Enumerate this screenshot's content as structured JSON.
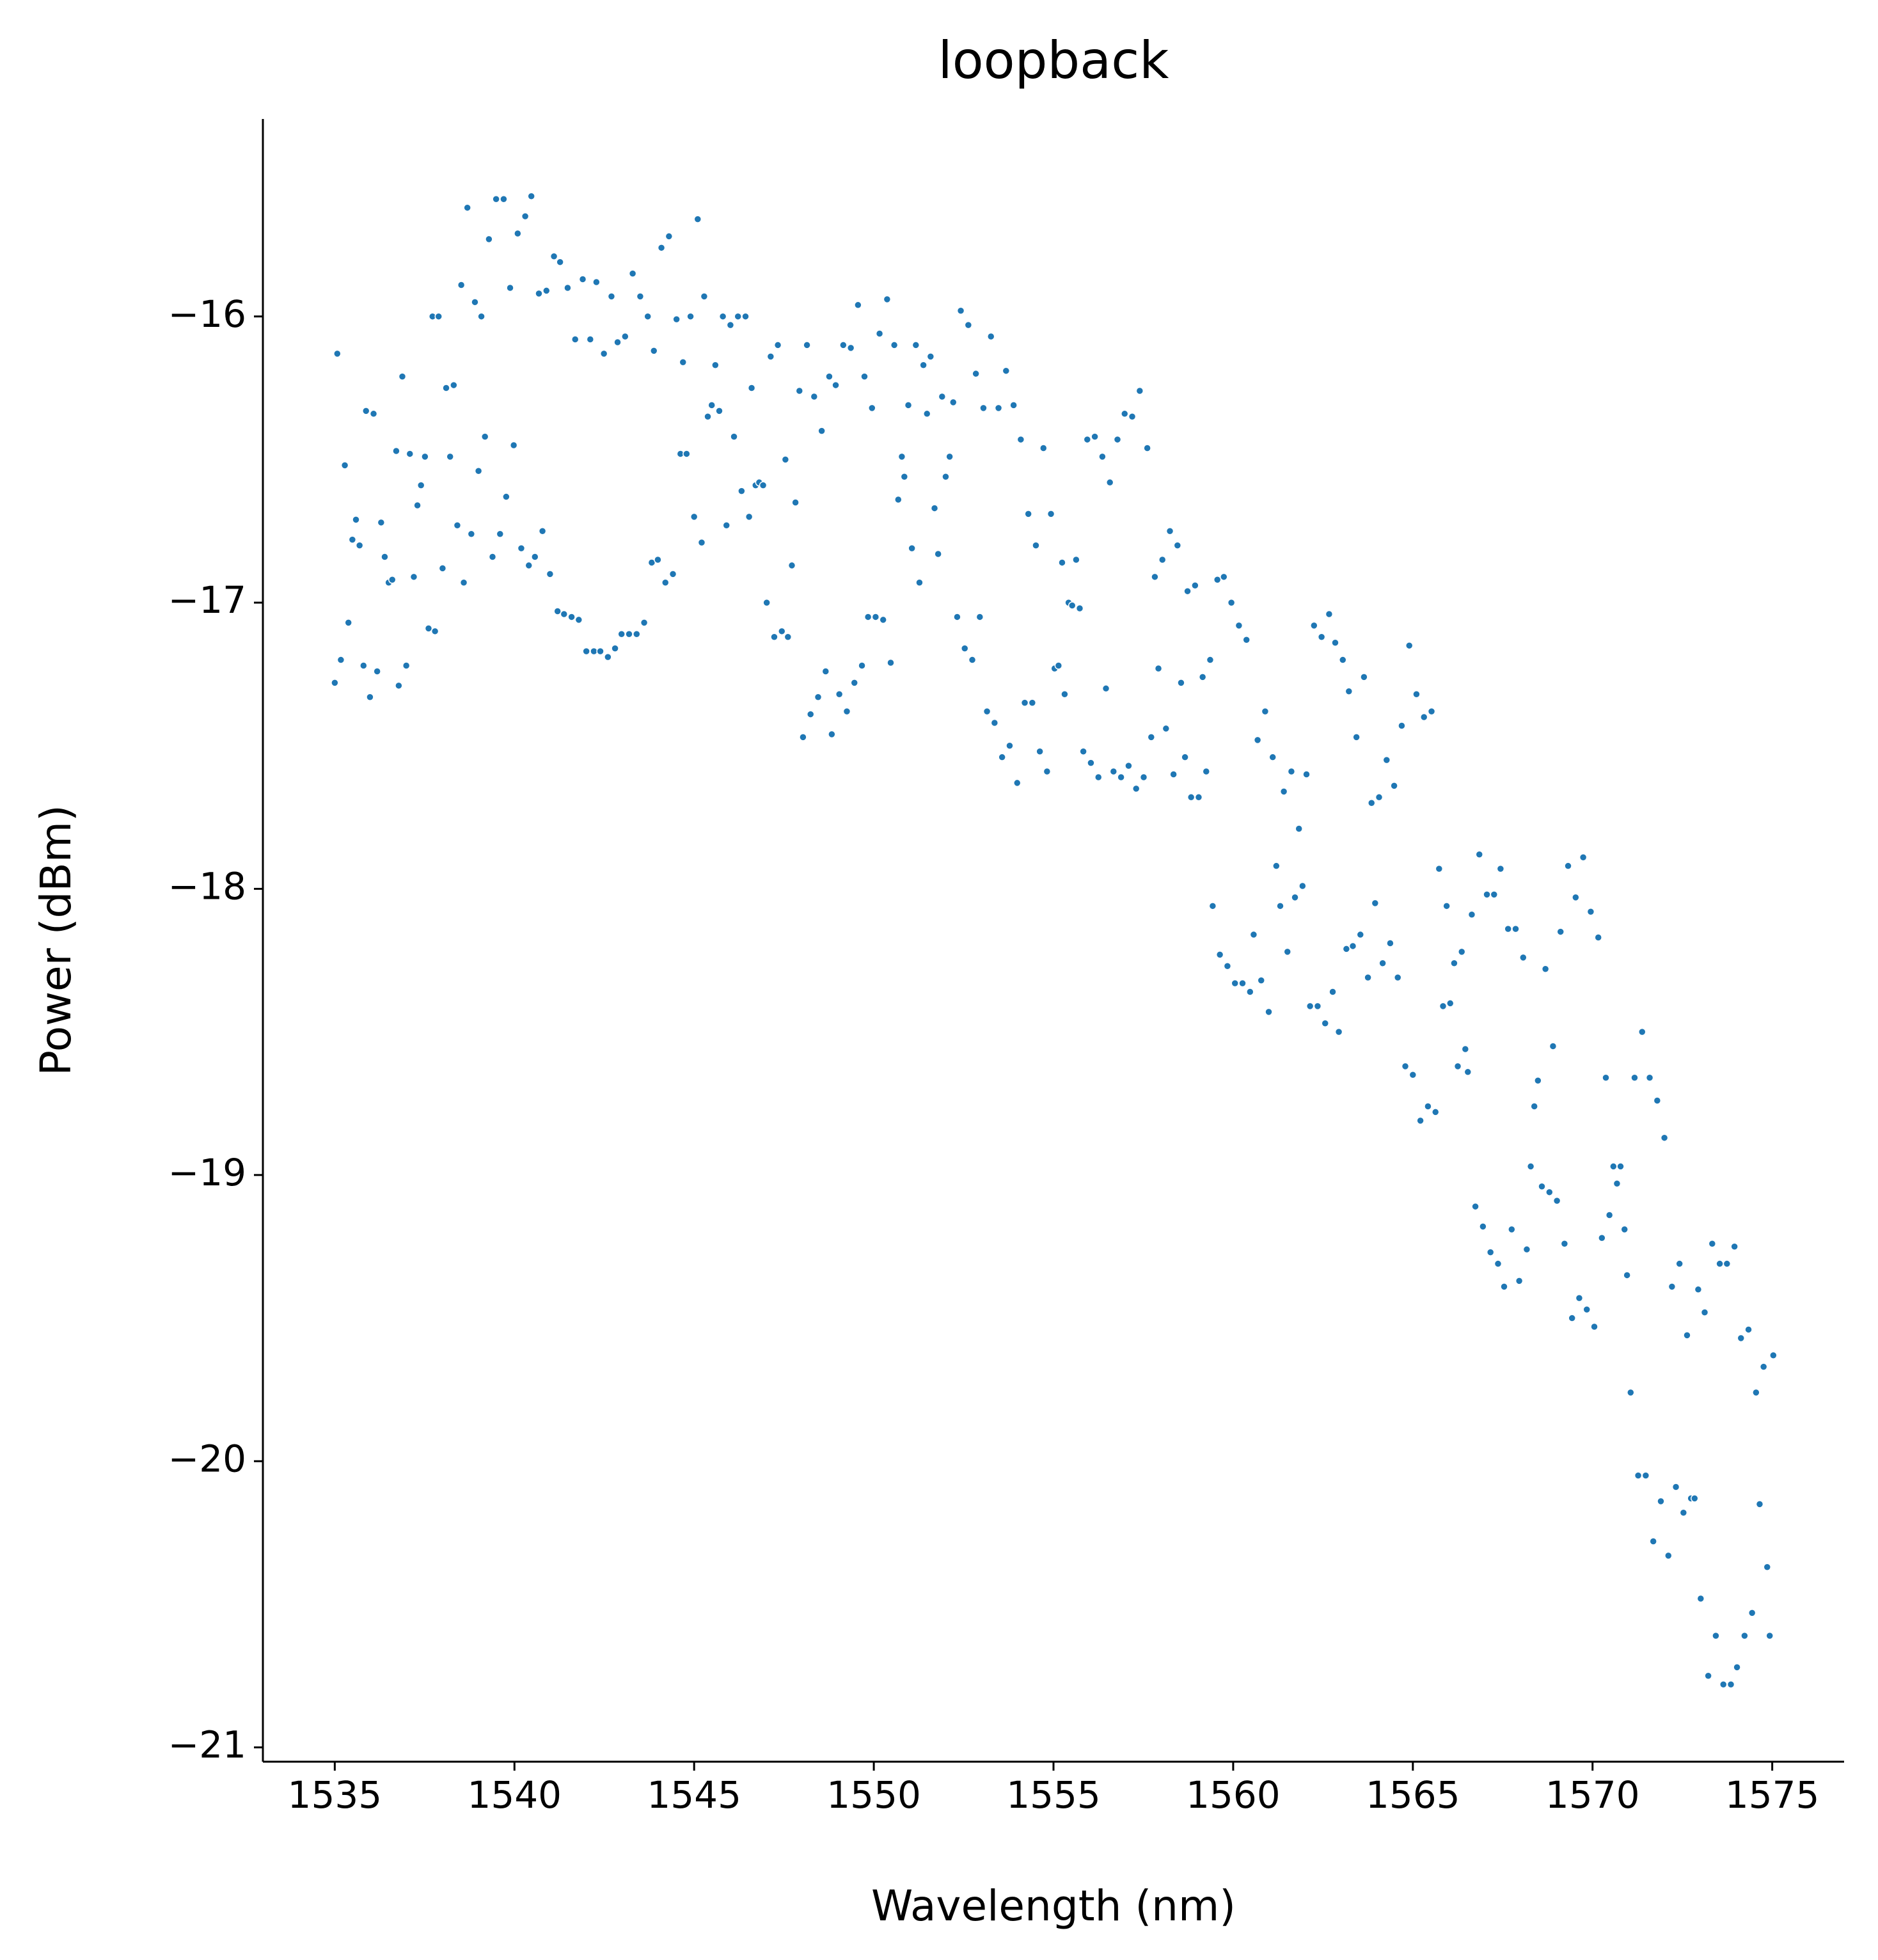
{
  "chart_data": {
    "type": "scatter",
    "title": "loopback",
    "xlabel": "Wavelength (nm)",
    "ylabel": "Power (dBm)",
    "color": "#1f77b4",
    "xlim": [
      1533,
      1577
    ],
    "ylim": [
      -21.05,
      -15.31
    ],
    "xticks": [
      1535,
      1540,
      1545,
      1550,
      1555,
      1560,
      1565,
      1570,
      1575
    ],
    "yticks": [
      {
        "value": -21,
        "label": "−21"
      },
      {
        "value": -20,
        "label": "−20"
      },
      {
        "value": -19,
        "label": "−19"
      },
      {
        "value": -18,
        "label": "−18"
      },
      {
        "value": -17,
        "label": "−17"
      },
      {
        "value": -16,
        "label": "−16"
      }
    ],
    "x": [
      1535.0,
      1535.07,
      1535.17,
      1535.28,
      1535.38,
      1535.49,
      1535.59,
      1535.69,
      1535.8,
      1535.87,
      1535.98,
      1536.08,
      1536.18,
      1536.29,
      1536.39,
      1536.5,
      1536.6,
      1536.71,
      1536.78,
      1536.88,
      1536.99,
      1537.09,
      1537.2,
      1537.3,
      1537.4,
      1537.51,
      1537.61,
      1537.72,
      1537.79,
      1537.89,
      1538.0,
      1538.1,
      1538.21,
      1538.31,
      1538.41,
      1538.52,
      1538.59,
      1538.69,
      1538.8,
      1538.9,
      1539.0,
      1539.08,
      1539.18,
      1539.29,
      1539.39,
      1539.49,
      1539.6,
      1539.7,
      1539.77,
      1539.88,
      1539.98,
      1540.09,
      1540.19,
      1540.3,
      1540.4,
      1540.47,
      1540.57,
      1540.68,
      1540.78,
      1540.89,
      1540.99,
      1541.1,
      1541.2,
      1541.27,
      1541.38,
      1541.48,
      1541.59,
      1541.69,
      1541.79,
      1541.9,
      1542.0,
      1542.11,
      1542.21,
      1542.28,
      1542.39,
      1542.49,
      1542.6,
      1542.7,
      1542.8,
      1542.87,
      1542.98,
      1543.08,
      1543.19,
      1543.29,
      1543.4,
      1543.5,
      1543.61,
      1543.71,
      1543.82,
      1543.88,
      1543.99,
      1544.09,
      1544.2,
      1544.3,
      1544.41,
      1544.51,
      1544.62,
      1544.69,
      1544.79,
      1544.9,
      1545.0,
      1545.1,
      1545.21,
      1545.28,
      1545.38,
      1545.49,
      1545.59,
      1545.7,
      1545.8,
      1545.9,
      1546.01,
      1546.11,
      1546.22,
      1546.32,
      1546.43,
      1546.53,
      1546.6,
      1546.71,
      1546.81,
      1546.92,
      1547.02,
      1547.13,
      1547.23,
      1547.33,
      1547.44,
      1547.54,
      1547.61,
      1547.72,
      1547.82,
      1547.93,
      1548.03,
      1548.14,
      1548.24,
      1548.34,
      1548.45,
      1548.55,
      1548.66,
      1548.76,
      1548.83,
      1548.94,
      1549.04,
      1549.15,
      1549.25,
      1549.36,
      1549.46,
      1549.56,
      1549.67,
      1549.74,
      1549.84,
      1549.95,
      1550.05,
      1550.16,
      1550.26,
      1550.37,
      1550.47,
      1550.57,
      1550.68,
      1550.78,
      1550.85,
      1550.96,
      1551.06,
      1551.17,
      1551.27,
      1551.38,
      1551.48,
      1551.58,
      1551.69,
      1551.79,
      1551.9,
      1552.0,
      1552.11,
      1552.21,
      1552.32,
      1552.42,
      1552.53,
      1552.63,
      1552.74,
      1552.84,
      1552.95,
      1553.05,
      1553.15,
      1553.26,
      1553.36,
      1553.47,
      1553.57,
      1553.68,
      1553.78,
      1553.89,
      1553.99,
      1554.09,
      1554.2,
      1554.3,
      1554.41,
      1554.51,
      1554.62,
      1554.72,
      1554.82,
      1554.93,
      1555.03,
      1555.14,
      1555.24,
      1555.31,
      1555.42,
      1555.52,
      1555.63,
      1555.73,
      1555.83,
      1555.94,
      1556.04,
      1556.15,
      1556.25,
      1556.36,
      1556.46,
      1556.57,
      1556.67,
      1556.78,
      1556.88,
      1556.98,
      1557.09,
      1557.19,
      1557.3,
      1557.4,
      1557.51,
      1557.61,
      1557.72,
      1557.82,
      1557.92,
      1558.03,
      1558.13,
      1558.24,
      1558.34,
      1558.45,
      1558.55,
      1558.66,
      1558.73,
      1558.83,
      1558.94,
      1559.04,
      1559.15,
      1559.25,
      1559.36,
      1559.43,
      1559.56,
      1559.63,
      1559.74,
      1559.84,
      1559.95,
      1560.05,
      1560.16,
      1560.26,
      1560.37,
      1560.47,
      1560.57,
      1560.68,
      1560.78,
      1560.89,
      1560.99,
      1561.1,
      1561.2,
      1561.31,
      1561.41,
      1561.51,
      1561.62,
      1561.72,
      1561.83,
      1561.93,
      1562.04,
      1562.14,
      1562.25,
      1562.35,
      1562.46,
      1562.56,
      1562.67,
      1562.77,
      1562.84,
      1562.94,
      1563.05,
      1563.15,
      1563.22,
      1563.33,
      1563.43,
      1563.54,
      1563.64,
      1563.75,
      1563.85,
      1563.95,
      1564.06,
      1564.16,
      1564.27,
      1564.37,
      1564.48,
      1564.58,
      1564.69,
      1564.79,
      1564.9,
      1565.0,
      1565.1,
      1565.21,
      1565.31,
      1565.42,
      1565.52,
      1565.63,
      1565.73,
      1565.84,
      1565.94,
      1566.04,
      1566.15,
      1566.25,
      1566.36,
      1566.46,
      1566.53,
      1566.64,
      1566.74,
      1566.85,
      1566.95,
      1567.06,
      1567.16,
      1567.26,
      1567.37,
      1567.44,
      1567.54,
      1567.65,
      1567.75,
      1567.86,
      1567.96,
      1568.07,
      1568.17,
      1568.28,
      1568.38,
      1568.48,
      1568.59,
      1568.69,
      1568.8,
      1568.9,
      1569.01,
      1569.11,
      1569.22,
      1569.32,
      1569.43,
      1569.53,
      1569.63,
      1569.74,
      1569.84,
      1569.95,
      1570.05,
      1570.16,
      1570.26,
      1570.37,
      1570.47,
      1570.58,
      1570.68,
      1570.78,
      1570.89,
      1570.96,
      1571.06,
      1571.17,
      1571.27,
      1571.38,
      1571.48,
      1571.59,
      1571.69,
      1571.8,
      1571.9,
      1572.0,
      1572.11,
      1572.21,
      1572.32,
      1572.42,
      1572.53,
      1572.63,
      1572.74,
      1572.84,
      1572.94,
      1573.01,
      1573.12,
      1573.22,
      1573.33,
      1573.43,
      1573.54,
      1573.64,
      1573.74,
      1573.85,
      1573.95,
      1574.02,
      1574.13,
      1574.23,
      1574.34,
      1574.44,
      1574.55,
      1574.65,
      1574.76,
      1574.86,
      1574.93,
      1575.03
    ],
    "values": [
      -17.28,
      -16.13,
      -17.2,
      -16.52,
      -17.07,
      -16.78,
      -16.71,
      -16.8,
      -17.22,
      -16.33,
      -17.33,
      -16.34,
      -17.24,
      -16.72,
      -16.84,
      -16.93,
      -16.92,
      -16.47,
      -17.29,
      -16.21,
      -17.22,
      -16.48,
      -16.91,
      -16.66,
      -16.59,
      -16.49,
      -17.09,
      -16.0,
      -17.1,
      -16.0,
      -16.88,
      -16.25,
      -16.49,
      -16.24,
      -16.73,
      -15.89,
      -16.93,
      -15.62,
      -16.76,
      -15.95,
      -16.54,
      -16.0,
      -16.42,
      -15.73,
      -16.84,
      -15.59,
      -16.76,
      -15.59,
      -16.63,
      -15.9,
      -16.45,
      -15.71,
      -16.81,
      -15.65,
      -16.87,
      -15.58,
      -16.84,
      -15.92,
      -16.75,
      -15.91,
      -16.9,
      -15.79,
      -17.03,
      -15.81,
      -17.04,
      -15.9,
      -17.05,
      -16.08,
      -17.06,
      -15.87,
      -17.17,
      -16.08,
      -17.17,
      -15.88,
      -17.17,
      -16.13,
      -17.19,
      -15.93,
      -17.16,
      -16.09,
      -17.11,
      -16.07,
      -17.11,
      -15.85,
      -17.11,
      -15.93,
      -17.07,
      -16.0,
      -16.86,
      -16.12,
      -16.85,
      -15.76,
      -16.93,
      -15.72,
      -16.9,
      -16.01,
      -16.48,
      -16.16,
      -16.48,
      -16.0,
      -16.7,
      -15.66,
      -16.79,
      -15.93,
      -16.35,
      -16.31,
      -16.17,
      -16.33,
      -16.0,
      -16.73,
      -16.03,
      -16.42,
      -16.0,
      -16.61,
      -16.0,
      -16.7,
      -16.25,
      -16.59,
      -16.58,
      -16.59,
      -17.0,
      -16.14,
      -17.12,
      -16.1,
      -17.1,
      -16.5,
      -17.12,
      -16.87,
      -16.65,
      -16.26,
      -17.47,
      -16.1,
      -17.39,
      -16.28,
      -17.33,
      -16.4,
      -17.24,
      -16.21,
      -17.46,
      -16.24,
      -17.32,
      -16.1,
      -17.38,
      -16.11,
      -17.28,
      -15.96,
      -17.22,
      -16.21,
      -17.05,
      -16.32,
      -17.05,
      -16.06,
      -17.06,
      -15.94,
      -17.21,
      -16.1,
      -16.64,
      -16.49,
      -16.56,
      -16.31,
      -16.81,
      -16.1,
      -16.93,
      -16.17,
      -16.34,
      -16.14,
      -16.67,
      -16.83,
      -16.28,
      -16.56,
      -16.49,
      -16.3,
      -17.05,
      -15.98,
      -17.16,
      -16.03,
      -17.2,
      -16.2,
      -17.05,
      -16.32,
      -17.38,
      -16.07,
      -17.42,
      -16.32,
      -17.54,
      -16.19,
      -17.5,
      -16.31,
      -17.63,
      -16.43,
      -17.35,
      -16.69,
      -17.35,
      -16.8,
      -17.52,
      -16.46,
      -17.59,
      -16.69,
      -17.23,
      -17.22,
      -16.86,
      -17.32,
      -17.0,
      -17.01,
      -16.85,
      -17.02,
      -17.52,
      -16.43,
      -17.56,
      -16.42,
      -17.61,
      -16.49,
      -17.3,
      -16.58,
      -17.59,
      -16.43,
      -17.61,
      -16.34,
      -17.57,
      -16.35,
      -17.65,
      -16.26,
      -17.61,
      -16.46,
      -17.47,
      -16.91,
      -17.23,
      -16.85,
      -17.44,
      -16.75,
      -17.6,
      -16.8,
      -17.28,
      -17.54,
      -16.96,
      -17.68,
      -16.94,
      -17.68,
      -17.26,
      -17.59,
      -17.2,
      -18.06,
      -16.92,
      -18.23,
      -16.91,
      -18.27,
      -17.0,
      -18.33,
      -17.08,
      -18.33,
      -17.13,
      -18.36,
      -18.16,
      -17.48,
      -18.32,
      -17.38,
      -18.43,
      -17.54,
      -17.92,
      -18.06,
      -17.66,
      -18.22,
      -17.59,
      -18.03,
      -17.79,
      -17.99,
      -17.6,
      -18.41,
      -17.08,
      -18.41,
      -17.12,
      -18.47,
      -17.04,
      -18.36,
      -17.14,
      -18.5,
      -17.2,
      -18.21,
      -17.31,
      -18.2,
      -17.47,
      -18.16,
      -17.26,
      -18.31,
      -17.7,
      -18.05,
      -17.68,
      -18.26,
      -17.55,
      -18.19,
      -17.64,
      -18.31,
      -17.43,
      -18.62,
      -17.15,
      -18.65,
      -17.32,
      -18.81,
      -17.4,
      -18.76,
      -17.38,
      -18.78,
      -17.93,
      -18.41,
      -18.06,
      -18.4,
      -18.26,
      -18.62,
      -18.22,
      -18.56,
      -18.64,
      -18.09,
      -19.11,
      -17.88,
      -19.18,
      -18.02,
      -19.27,
      -18.02,
      -19.31,
      -17.93,
      -19.39,
      -18.14,
      -19.19,
      -18.14,
      -19.37,
      -18.24,
      -19.26,
      -18.97,
      -18.76,
      -18.67,
      -19.04,
      -18.28,
      -19.06,
      -18.55,
      -19.09,
      -18.15,
      -19.24,
      -17.92,
      -19.5,
      -18.03,
      -19.43,
      -17.89,
      -19.47,
      -18.08,
      -19.53,
      -18.17,
      -19.22,
      -18.66,
      -19.14,
      -18.97,
      -19.03,
      -18.97,
      -19.19,
      -19.35,
      -19.76,
      -18.66,
      -20.05,
      -18.5,
      -20.05,
      -18.66,
      -20.28,
      -18.74,
      -20.14,
      -18.87,
      -20.33,
      -19.39,
      -20.09,
      -19.31,
      -20.18,
      -19.56,
      -20.13,
      -20.13,
      -19.4,
      -20.48,
      -19.48,
      -20.75,
      -19.24,
      -20.61,
      -19.31,
      -20.78,
      -19.31,
      -20.78,
      -19.25,
      -20.72,
      -19.57,
      -20.61,
      -19.54,
      -20.53,
      -19.76,
      -20.15,
      -19.67,
      -20.37,
      -20.61,
      -19.63
    ]
  }
}
